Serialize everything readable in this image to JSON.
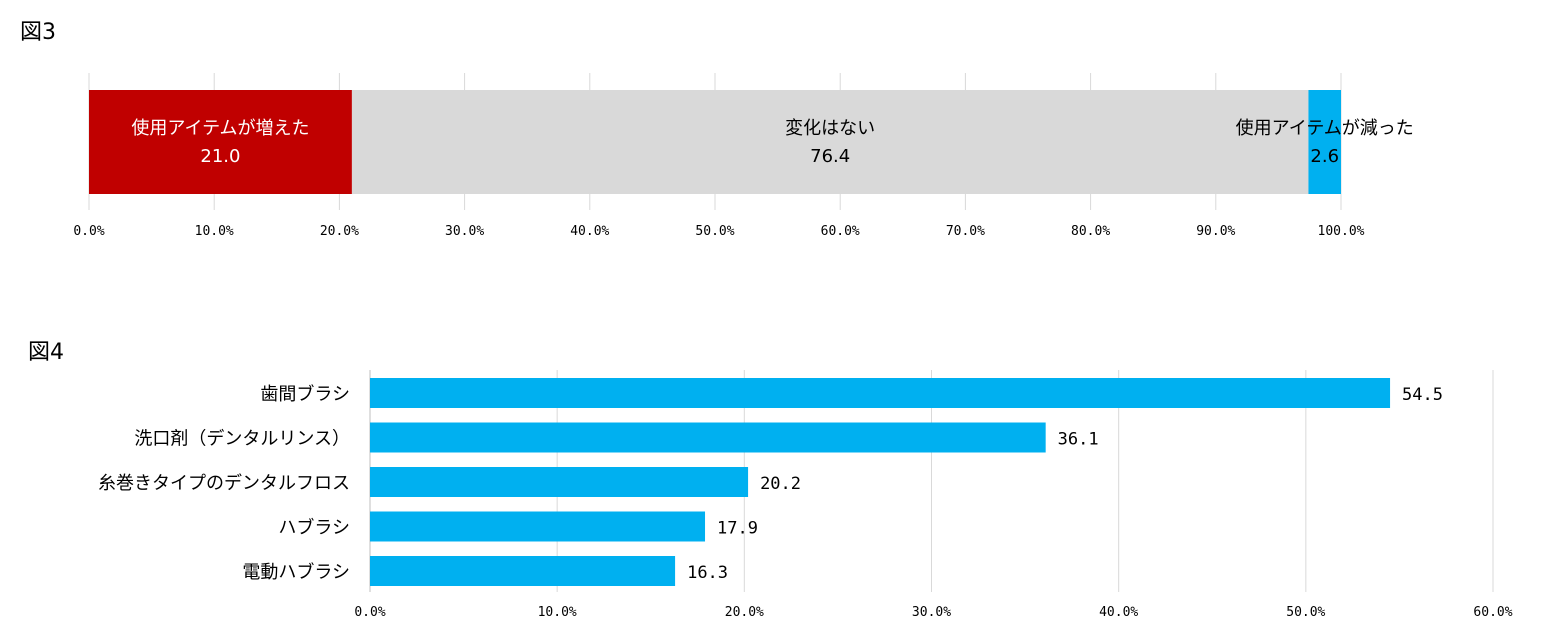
{
  "figures": {
    "fig3_label": "図3",
    "fig4_label": "図4"
  },
  "colors": {
    "increased": "#c00000",
    "no_change": "#d9d9d9",
    "decreased": "#00b0f0",
    "bar": "#00b0f0",
    "grid": "#d9d9d9"
  },
  "chart_data": [
    {
      "type": "bar",
      "orientation": "horizontal-stacked",
      "title": "",
      "xlim": [
        0,
        100
      ],
      "x_ticks": [
        "0.0%",
        "10.0%",
        "20.0%",
        "30.0%",
        "40.0%",
        "50.0%",
        "60.0%",
        "70.0%",
        "80.0%",
        "90.0%",
        "100.0%"
      ],
      "grid": true,
      "series": [
        {
          "name": "使用アイテムが増えた",
          "values": [
            21.0
          ],
          "label": "21.0"
        },
        {
          "name": "変化はない",
          "values": [
            76.4
          ],
          "label": "76.4"
        },
        {
          "name": "使用アイテムが減った",
          "values": [
            2.6
          ],
          "label": "2.6"
        }
      ]
    },
    {
      "type": "bar",
      "orientation": "horizontal",
      "title": "",
      "xlim": [
        0,
        60
      ],
      "x_ticks": [
        "0.0%",
        "10.0%",
        "20.0%",
        "30.0%",
        "40.0%",
        "50.0%",
        "60.0%"
      ],
      "grid": true,
      "categories": [
        "歯間ブラシ",
        "洗口剤（デンタルリンス）",
        "糸巻きタイプのデンタルフロス",
        "ハブラシ",
        "電動ハブラシ"
      ],
      "values": [
        54.5,
        36.1,
        20.2,
        17.9,
        16.3
      ],
      "value_labels": [
        "54.5",
        "36.1",
        "20.2",
        "17.9",
        "16.3"
      ]
    }
  ]
}
